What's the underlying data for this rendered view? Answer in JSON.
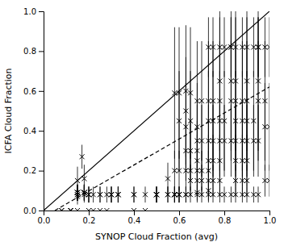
{
  "chart_data": {
    "type": "scatter",
    "xlabel": "SYNOP Cloud Fraction (avg)",
    "ylabel": "ICFA Cloud Fraction",
    "xlim": [
      0.0,
      1.0
    ],
    "ylim": [
      0.0,
      1.0
    ],
    "xticks": [
      {
        "value": 0.0,
        "label": "0.0"
      },
      0.2,
      0.4,
      0.6,
      0.8,
      {
        "value": 1.0,
        "label": "1.0"
      }
    ],
    "yticks": [
      {
        "value": 0.0,
        "label": "0.0"
      },
      0.2,
      0.4,
      0.6,
      0.8,
      {
        "value": 1.0,
        "label": "1.0"
      }
    ],
    "grid": false,
    "series": [
      {
        "type": "scatter",
        "marker": "x",
        "color": "black",
        "x": [
          0.0,
          0.0,
          0.08,
          0.08,
          0.12,
          0.12,
          0.12,
          0.15,
          0.15,
          0.15,
          0.15,
          0.15,
          0.15,
          0.15,
          0.15,
          0.15,
          0.15,
          0.15,
          0.17,
          0.18,
          0.18,
          0.18,
          0.18,
          0.18,
          0.18,
          0.18,
          0.2,
          0.2,
          0.2,
          0.2,
          0.22,
          0.22,
          0.25,
          0.25,
          0.25,
          0.28,
          0.28,
          0.3,
          0.3,
          0.3,
          0.33,
          0.33,
          0.33,
          0.4,
          0.4,
          0.4,
          0.45,
          0.45,
          0.5,
          0.5,
          0.5,
          0.5,
          0.55,
          0.55,
          0.55,
          0.58,
          0.58,
          0.58,
          0.58,
          0.58,
          0.58,
          0.6,
          0.6,
          0.6,
          0.6,
          0.6,
          0.6,
          0.63,
          0.63,
          0.63,
          0.63,
          0.63,
          0.63,
          0.63,
          0.65,
          0.65,
          0.65,
          0.65,
          0.65,
          0.65,
          0.68,
          0.68,
          0.68,
          0.68,
          0.68,
          0.68,
          0.68,
          0.68,
          0.68,
          0.7,
          0.7,
          0.7,
          0.7,
          0.7,
          0.73,
          0.73,
          0.73,
          0.73,
          0.73,
          0.73,
          0.73,
          0.73,
          0.73,
          0.75,
          0.75,
          0.75,
          0.75,
          0.75,
          0.75,
          0.75,
          0.78,
          0.78,
          0.78,
          0.78,
          0.78,
          0.78,
          0.78,
          0.78,
          0.8,
          0.8,
          0.8,
          0.8,
          0.83,
          0.83,
          0.83,
          0.83,
          0.83,
          0.83,
          0.85,
          0.85,
          0.85,
          0.85,
          0.85,
          0.85,
          0.85,
          0.85,
          0.88,
          0.88,
          0.88,
          0.88,
          0.88,
          0.88,
          0.88,
          0.9,
          0.9,
          0.9,
          0.9,
          0.9,
          0.9,
          0.9,
          0.9,
          0.93,
          0.93,
          0.93,
          0.93,
          0.95,
          0.95,
          0.95,
          0.95,
          0.95,
          0.95,
          0.98,
          0.98,
          0.98,
          0.98,
          1.0,
          1.0,
          1.0
        ],
        "values": [
          0.0,
          0.0,
          0.0,
          0.0,
          0.0,
          0.0,
          0.0,
          0.0,
          0.0,
          0.07,
          0.08,
          0.08,
          0.09,
          0.09,
          0.09,
          0.09,
          0.09,
          0.15,
          0.27,
          0.08,
          0.09,
          0.09,
          0.09,
          0.09,
          0.09,
          0.16,
          0.0,
          0.08,
          0.08,
          0.08,
          0.0,
          0.08,
          0.0,
          0.08,
          0.08,
          0.0,
          0.08,
          0.08,
          0.08,
          0.08,
          0.08,
          0.08,
          0.08,
          0.0,
          0.08,
          0.08,
          0.0,
          0.08,
          0.08,
          0.08,
          0.08,
          0.08,
          0.08,
          0.08,
          0.16,
          0.08,
          0.08,
          0.08,
          0.08,
          0.2,
          0.59,
          0.08,
          0.08,
          0.08,
          0.2,
          0.45,
          0.59,
          0.08,
          0.08,
          0.2,
          0.3,
          0.42,
          0.5,
          0.6,
          0.08,
          0.15,
          0.2,
          0.3,
          0.45,
          0.59,
          0.08,
          0.09,
          0.15,
          0.2,
          0.25,
          0.3,
          0.35,
          0.42,
          0.55,
          0.08,
          0.15,
          0.2,
          0.35,
          0.55,
          0.08,
          0.1,
          0.15,
          0.2,
          0.25,
          0.35,
          0.45,
          0.55,
          0.82,
          0.08,
          0.15,
          0.25,
          0.35,
          0.45,
          0.55,
          0.82,
          0.08,
          0.15,
          0.25,
          0.35,
          0.45,
          0.55,
          0.65,
          0.82,
          0.08,
          0.35,
          0.45,
          0.82,
          0.08,
          0.35,
          0.55,
          0.65,
          0.82,
          0.82,
          0.08,
          0.15,
          0.25,
          0.35,
          0.45,
          0.55,
          0.65,
          0.82,
          0.08,
          0.15,
          0.25,
          0.35,
          0.45,
          0.55,
          0.82,
          0.08,
          0.15,
          0.25,
          0.35,
          0.45,
          0.55,
          0.65,
          0.82,
          0.08,
          0.35,
          0.45,
          0.82,
          0.08,
          0.35,
          0.55,
          0.65,
          0.82,
          0.82,
          0.15,
          0.42,
          0.55,
          0.82,
          0.15,
          0.42,
          0.82
        ],
        "errors": [
          0.0,
          0.0,
          0.0,
          0.0,
          0.0,
          0.0,
          0.0,
          0.0,
          0.0,
          0.04,
          0.03,
          0.03,
          0.04,
          0.04,
          0.04,
          0.04,
          0.04,
          0.07,
          0.06,
          0.04,
          0.04,
          0.04,
          0.04,
          0.04,
          0.04,
          0.07,
          0.0,
          0.04,
          0.04,
          0.04,
          0.0,
          0.04,
          0.0,
          0.04,
          0.04,
          0.0,
          0.04,
          0.04,
          0.04,
          0.04,
          0.04,
          0.04,
          0.04,
          0.0,
          0.04,
          0.04,
          0.0,
          0.04,
          0.04,
          0.04,
          0.04,
          0.04,
          0.04,
          0.04,
          0.08,
          0.04,
          0.04,
          0.04,
          0.04,
          0.1,
          0.33,
          0.04,
          0.04,
          0.04,
          0.1,
          0.25,
          0.33,
          0.04,
          0.04,
          0.1,
          0.15,
          0.22,
          0.27,
          0.33,
          0.04,
          0.08,
          0.1,
          0.15,
          0.25,
          0.33,
          0.04,
          0.04,
          0.08,
          0.1,
          0.13,
          0.15,
          0.18,
          0.22,
          0.3,
          0.04,
          0.08,
          0.1,
          0.18,
          0.3,
          0.04,
          0.05,
          0.08,
          0.1,
          0.13,
          0.18,
          0.25,
          0.3,
          0.15,
          0.04,
          0.08,
          0.13,
          0.18,
          0.25,
          0.3,
          0.15,
          0.04,
          0.08,
          0.13,
          0.18,
          0.25,
          0.3,
          0.35,
          0.15,
          0.04,
          0.18,
          0.25,
          0.15,
          0.04,
          0.18,
          0.3,
          0.35,
          0.15,
          0.15,
          0.04,
          0.08,
          0.13,
          0.18,
          0.25,
          0.3,
          0.35,
          0.15,
          0.04,
          0.08,
          0.13,
          0.18,
          0.25,
          0.3,
          0.15,
          0.04,
          0.08,
          0.13,
          0.18,
          0.25,
          0.3,
          0.35,
          0.15,
          0.04,
          0.18,
          0.25,
          0.15,
          0.04,
          0.18,
          0.3,
          0.35,
          0.15,
          0.15,
          0.08,
          0.22,
          0.3,
          0.15,
          0.08,
          0.22,
          0.15
        ]
      },
      {
        "type": "line",
        "line_style": "solid",
        "color": "black",
        "x": [
          0.0,
          1.0
        ],
        "values": [
          0.0,
          1.0
        ]
      },
      {
        "type": "line",
        "line_style": "dashed",
        "color": "black",
        "x": [
          0.05,
          1.0
        ],
        "values": [
          0.0,
          0.62
        ]
      }
    ]
  }
}
